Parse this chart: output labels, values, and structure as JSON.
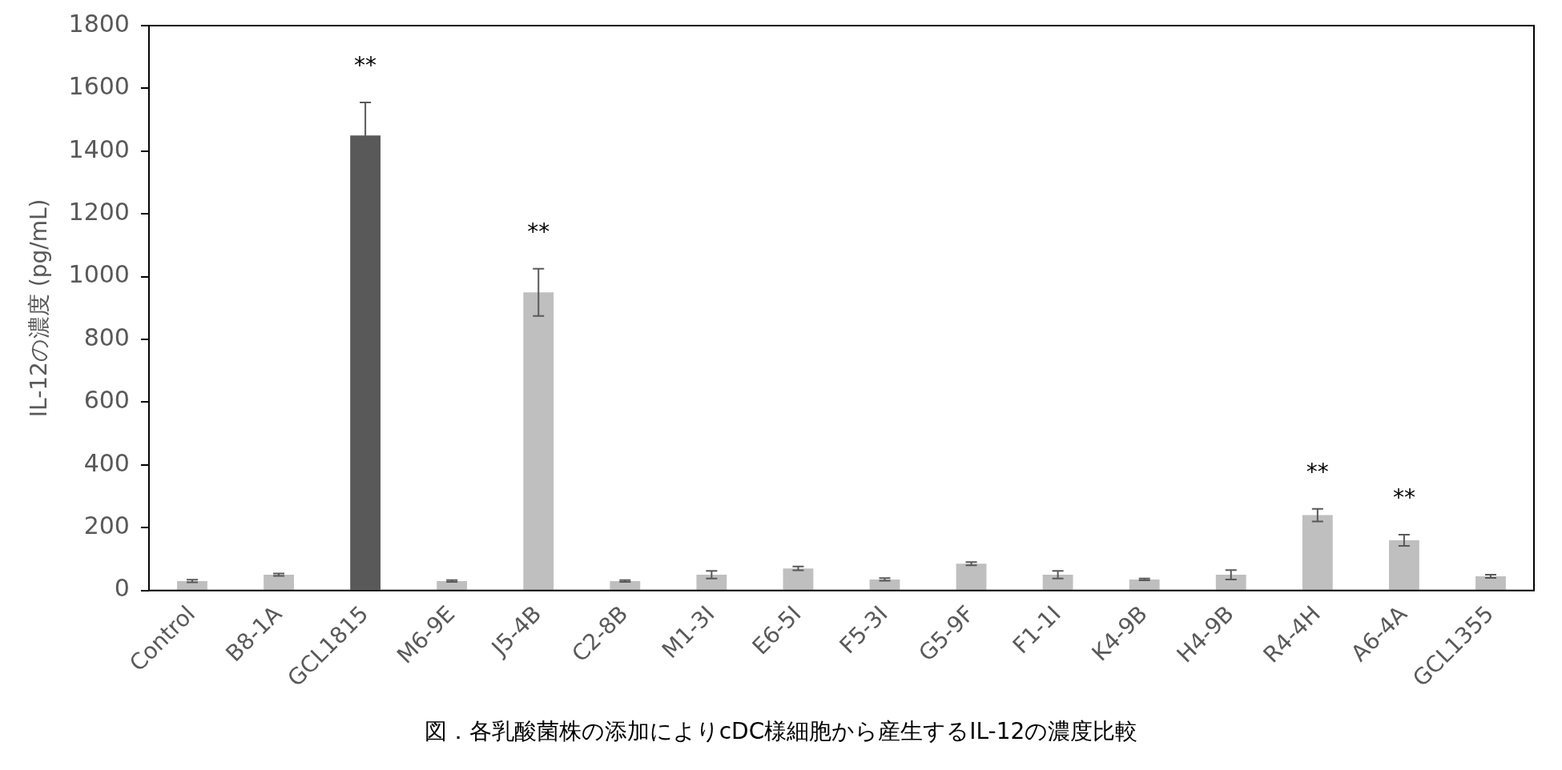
{
  "chart_data": {
    "type": "bar",
    "ylabel": "IL-12の濃度 (pg/mL)",
    "categories": [
      "Control",
      "B8-1A",
      "GCL1815",
      "M6-9E",
      "J5-4B",
      "C2-8B",
      "M1-3I",
      "E6-5I",
      "F5-3I",
      "G5-9F",
      "F1-1I",
      "K4-9B",
      "H4-9B",
      "R4-4H",
      "A6-4A",
      "GCL1355"
    ],
    "values": [
      30,
      50,
      1450,
      30,
      950,
      30,
      50,
      70,
      35,
      85,
      50,
      35,
      50,
      240,
      160,
      45
    ],
    "errors": [
      4,
      4,
      105,
      3,
      75,
      3,
      12,
      6,
      4,
      5,
      12,
      3,
      15,
      20,
      18,
      5
    ],
    "colors": [
      "#bfbfbf",
      "#bfbfbf",
      "#595959",
      "#bfbfbf",
      "#bfbfbf",
      "#bfbfbf",
      "#bfbfbf",
      "#bfbfbf",
      "#bfbfbf",
      "#bfbfbf",
      "#bfbfbf",
      "#bfbfbf",
      "#bfbfbf",
      "#bfbfbf",
      "#bfbfbf",
      "#bfbfbf"
    ],
    "ylim": [
      0,
      1800
    ],
    "yticks": [
      0,
      200,
      400,
      600,
      800,
      1000,
      1200,
      1400,
      1600,
      1800
    ],
    "grid": false,
    "legend": false,
    "annotations": [
      {
        "text": "**",
        "x": "GCL1815",
        "y": 1450
      },
      {
        "text": "**",
        "x": "J5-4B",
        "y": 950
      },
      {
        "text": "**",
        "x": "R4-4H",
        "y": 240
      },
      {
        "text": "**",
        "x": "A6-4A",
        "y": 160
      },
      "図．各乳酸菌株の添加によりcDC様細胞から産生するIL-12の濃度比較"
    ]
  }
}
